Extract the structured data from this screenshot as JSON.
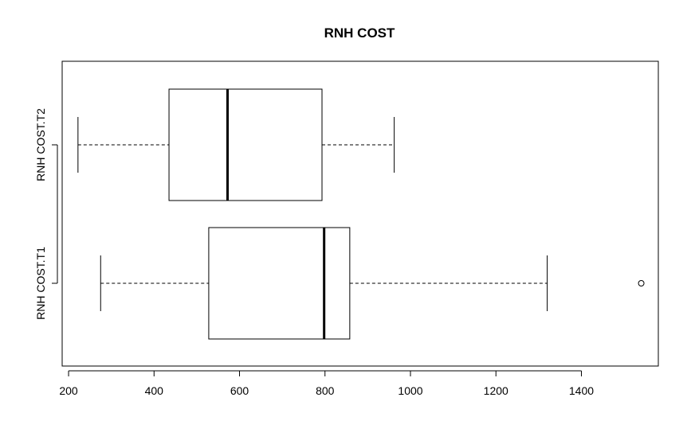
{
  "chart_data": {
    "type": "boxplot",
    "orientation": "horizontal",
    "title": "RNH COST",
    "xlabel": "",
    "ylabel": "",
    "xlim": [
      185,
      1580
    ],
    "xticks": [
      200,
      400,
      600,
      800,
      1000,
      1200,
      1400
    ],
    "grid": false,
    "series": [
      {
        "name": "RNH COST.T1",
        "whisker_low": 275,
        "q1": 528,
        "median": 798,
        "q3": 858,
        "whisker_high": 1320,
        "outliers": [
          1540
        ]
      },
      {
        "name": "RNH COST.T2",
        "whisker_low": 222,
        "q1": 435,
        "median": 572,
        "q3": 793,
        "whisker_high": 962,
        "outliers": []
      }
    ]
  }
}
